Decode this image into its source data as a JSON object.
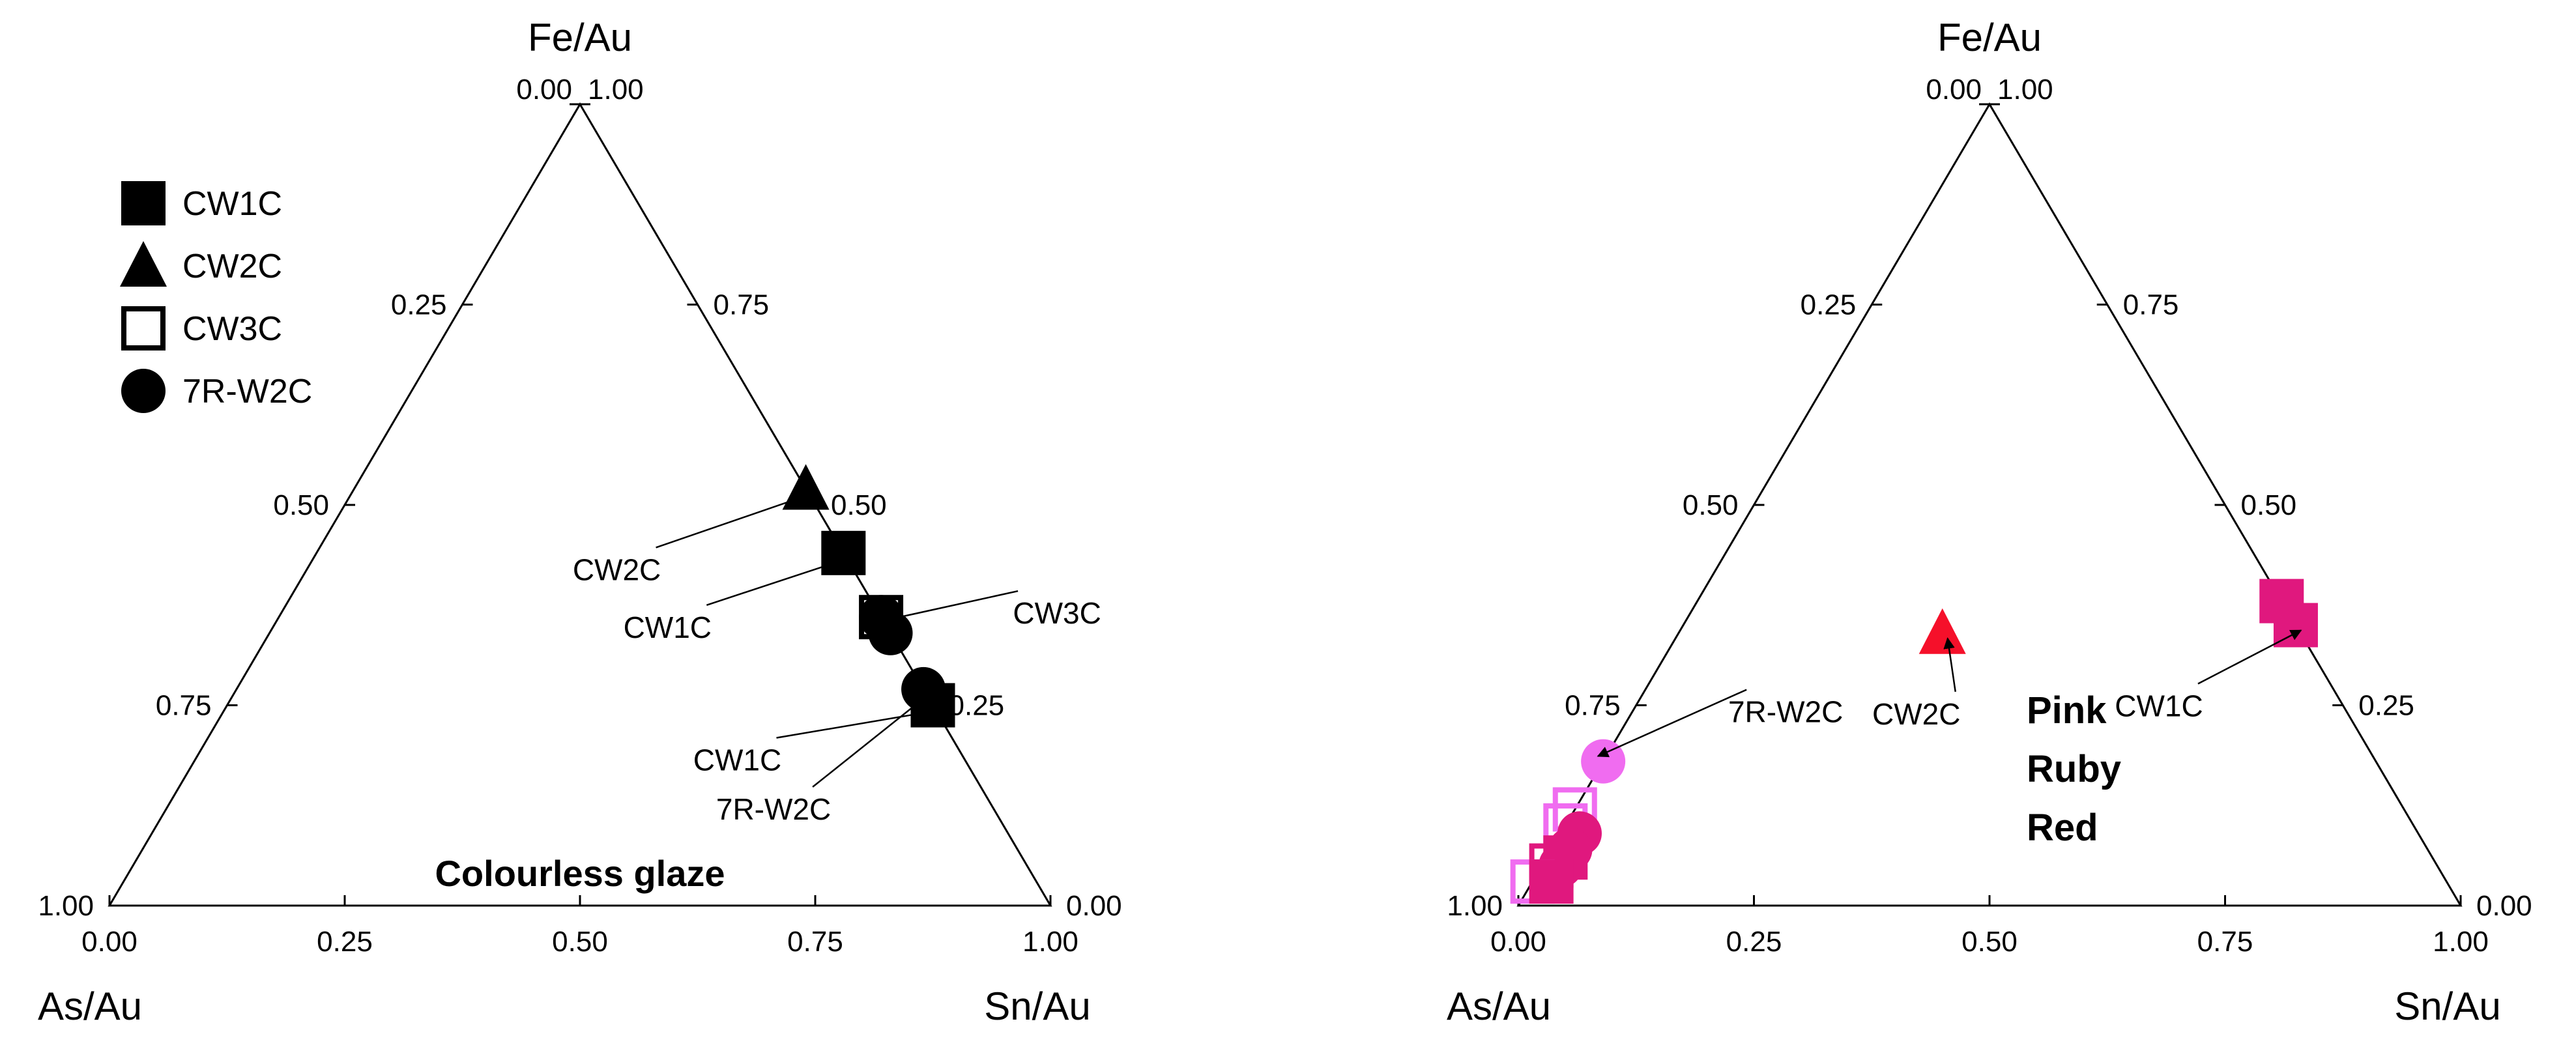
{
  "chart_data": [
    {
      "type": "ternary",
      "apex_labels": {
        "top": "Fe/Au",
        "left": "As/Au",
        "right": "Sn/Au"
      },
      "ticks": [
        "0.00",
        "0.25",
        "0.50",
        "0.75",
        "1.00"
      ],
      "note": "Colourless glaze",
      "legend": [
        {
          "name": "CW1C",
          "marker": "square-filled"
        },
        {
          "name": "CW2C",
          "marker": "triangle-filled"
        },
        {
          "name": "CW3C",
          "marker": "square-open"
        },
        {
          "name": "7R-W2C",
          "marker": "circle-filled"
        }
      ],
      "points": [
        {
          "sample": "CW1C",
          "marker": "square-filled",
          "color": "#000000",
          "as": 0.0,
          "sn": 0.75,
          "fe": 0.25
        },
        {
          "sample": "7R-W2C",
          "marker": "circle-filled",
          "color": "#000000",
          "as": 0.0,
          "sn": 0.73,
          "fe": 0.27
        },
        {
          "sample": "7R-W2C",
          "marker": "circle-filled",
          "color": "#000000",
          "as": 0.0,
          "sn": 0.66,
          "fe": 0.34
        },
        {
          "sample": "CW3C",
          "marker": "square-open",
          "color": "#000000",
          "as": 0.0,
          "sn": 0.64,
          "fe": 0.36
        },
        {
          "sample": "7R-W2C",
          "marker": "circle-filled",
          "color": "#000000",
          "as": 0.0,
          "sn": 0.64,
          "fe": 0.36
        },
        {
          "sample": "CW1C",
          "marker": "square-filled",
          "color": "#000000",
          "as": 0.0,
          "sn": 0.56,
          "fe": 0.44
        },
        {
          "sample": "CW2C",
          "marker": "triangle-filled",
          "color": "#000000",
          "as": 0.0,
          "sn": 0.48,
          "fe": 0.52
        }
      ],
      "annotations": [
        {
          "text": "CW1C",
          "target": 0
        },
        {
          "text": "7R-W2C",
          "target": 1
        },
        {
          "text": "CW3C",
          "target": 3
        },
        {
          "text": "CW1C",
          "target": 5
        },
        {
          "text": "CW2C",
          "target": 6
        }
      ]
    },
    {
      "type": "ternary",
      "apex_labels": {
        "top": "Fe/Au",
        "left": "As/Au",
        "right": "Sn/Au"
      },
      "ticks": [
        "0.00",
        "0.25",
        "0.50",
        "0.75",
        "1.00"
      ],
      "color_legend": [
        {
          "label": "Pink",
          "color": "#f06cf0"
        },
        {
          "label": "Ruby",
          "color": "#e0187e"
        },
        {
          "label": "Red",
          "color": "#f5102a"
        }
      ],
      "points": [
        {
          "sample": "CW2C",
          "marker": "triangle-filled",
          "color": "#f5102a",
          "as": 0.38,
          "sn": 0.28,
          "fe": 0.34
        },
        {
          "sample": "CW1C",
          "marker": "square-filled",
          "color": "#e0187e",
          "as": 0.0,
          "sn": 0.65,
          "fe": 0.35
        },
        {
          "sample": "CW1C",
          "marker": "square-filled",
          "color": "#e0187e",
          "as": 0.0,
          "sn": 0.62,
          "fe": 0.38
        },
        {
          "sample": "7R-W2C",
          "marker": "circle-filled",
          "color": "#f06cf0",
          "as": 0.82,
          "sn": 0.0,
          "fe": 0.18
        },
        {
          "sample": "Pink",
          "marker": "square-open",
          "color": "#f06cf0",
          "as": 0.88,
          "sn": 0.0,
          "fe": 0.12
        },
        {
          "sample": "Pink",
          "marker": "square-open",
          "color": "#f06cf0",
          "as": 0.9,
          "sn": 0.0,
          "fe": 0.1
        },
        {
          "sample": "Ruby",
          "marker": "circle-filled",
          "color": "#e0187e",
          "as": 0.89,
          "sn": 0.02,
          "fe": 0.09
        },
        {
          "sample": "Ruby",
          "marker": "circle-filled",
          "color": "#e0187e",
          "as": 0.91,
          "sn": 0.02,
          "fe": 0.07
        },
        {
          "sample": "Ruby",
          "marker": "square-filled",
          "color": "#e0187e",
          "as": 0.92,
          "sn": 0.02,
          "fe": 0.06
        },
        {
          "sample": "Ruby",
          "marker": "circle-filled",
          "color": "#e0187e",
          "as": 0.93,
          "sn": 0.02,
          "fe": 0.05
        },
        {
          "sample": "Ruby",
          "marker": "square-open",
          "color": "#e0187e",
          "as": 0.94,
          "sn": 0.01,
          "fe": 0.05
        },
        {
          "sample": "Pink",
          "marker": "square-open",
          "color": "#f06cf0",
          "as": 0.97,
          "sn": 0.0,
          "fe": 0.03
        },
        {
          "sample": "Ruby",
          "marker": "square-filled",
          "color": "#e0187e",
          "as": 0.95,
          "sn": 0.02,
          "fe": 0.03
        }
      ],
      "annotations": [
        {
          "text": "CW2C",
          "target": 0
        },
        {
          "text": "CW1C",
          "target": 1
        },
        {
          "text": "7R-W2C",
          "target": 3
        }
      ]
    }
  ]
}
